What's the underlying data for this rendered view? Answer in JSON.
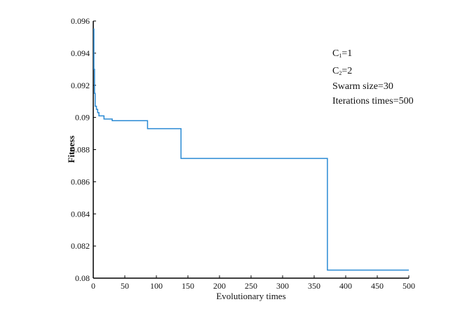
{
  "chart_data": {
    "type": "line",
    "title": "",
    "xlabel": "Evolutionary times",
    "ylabel": "Fitness",
    "xlim": [
      0,
      500
    ],
    "ylim": [
      0.08,
      0.096
    ],
    "xticks": [
      0,
      50,
      100,
      150,
      200,
      250,
      300,
      350,
      400,
      450,
      500
    ],
    "xtick_labels": [
      "0",
      "50",
      "100",
      "150",
      "200",
      "250",
      "300",
      "350",
      "400",
      "450",
      "500"
    ],
    "yticks": [
      0.08,
      0.082,
      0.084,
      0.086,
      0.088,
      0.09,
      0.092,
      0.094,
      0.096
    ],
    "ytick_labels": [
      "0.08",
      "0.082",
      "0.084",
      "0.086",
      "0.088",
      "0.09",
      "0.092",
      "0.094",
      "0.096"
    ],
    "grid": false,
    "line_color": "#2a8ad4",
    "series": [
      {
        "step": true,
        "x": [
          0,
          1,
          2,
          3,
          5,
          7,
          9,
          17,
          30,
          86,
          139,
          371,
          500
        ],
        "y": [
          0.0955,
          0.093,
          0.0915,
          0.0907,
          0.0905,
          0.0903,
          0.0901,
          0.0899,
          0.0898,
          0.0893,
          0.08745,
          0.0805,
          0.0805
        ]
      }
    ],
    "annotations": [
      "C1=1",
      "C2=2",
      "Swarm size=30",
      "Iterations times=500"
    ]
  }
}
